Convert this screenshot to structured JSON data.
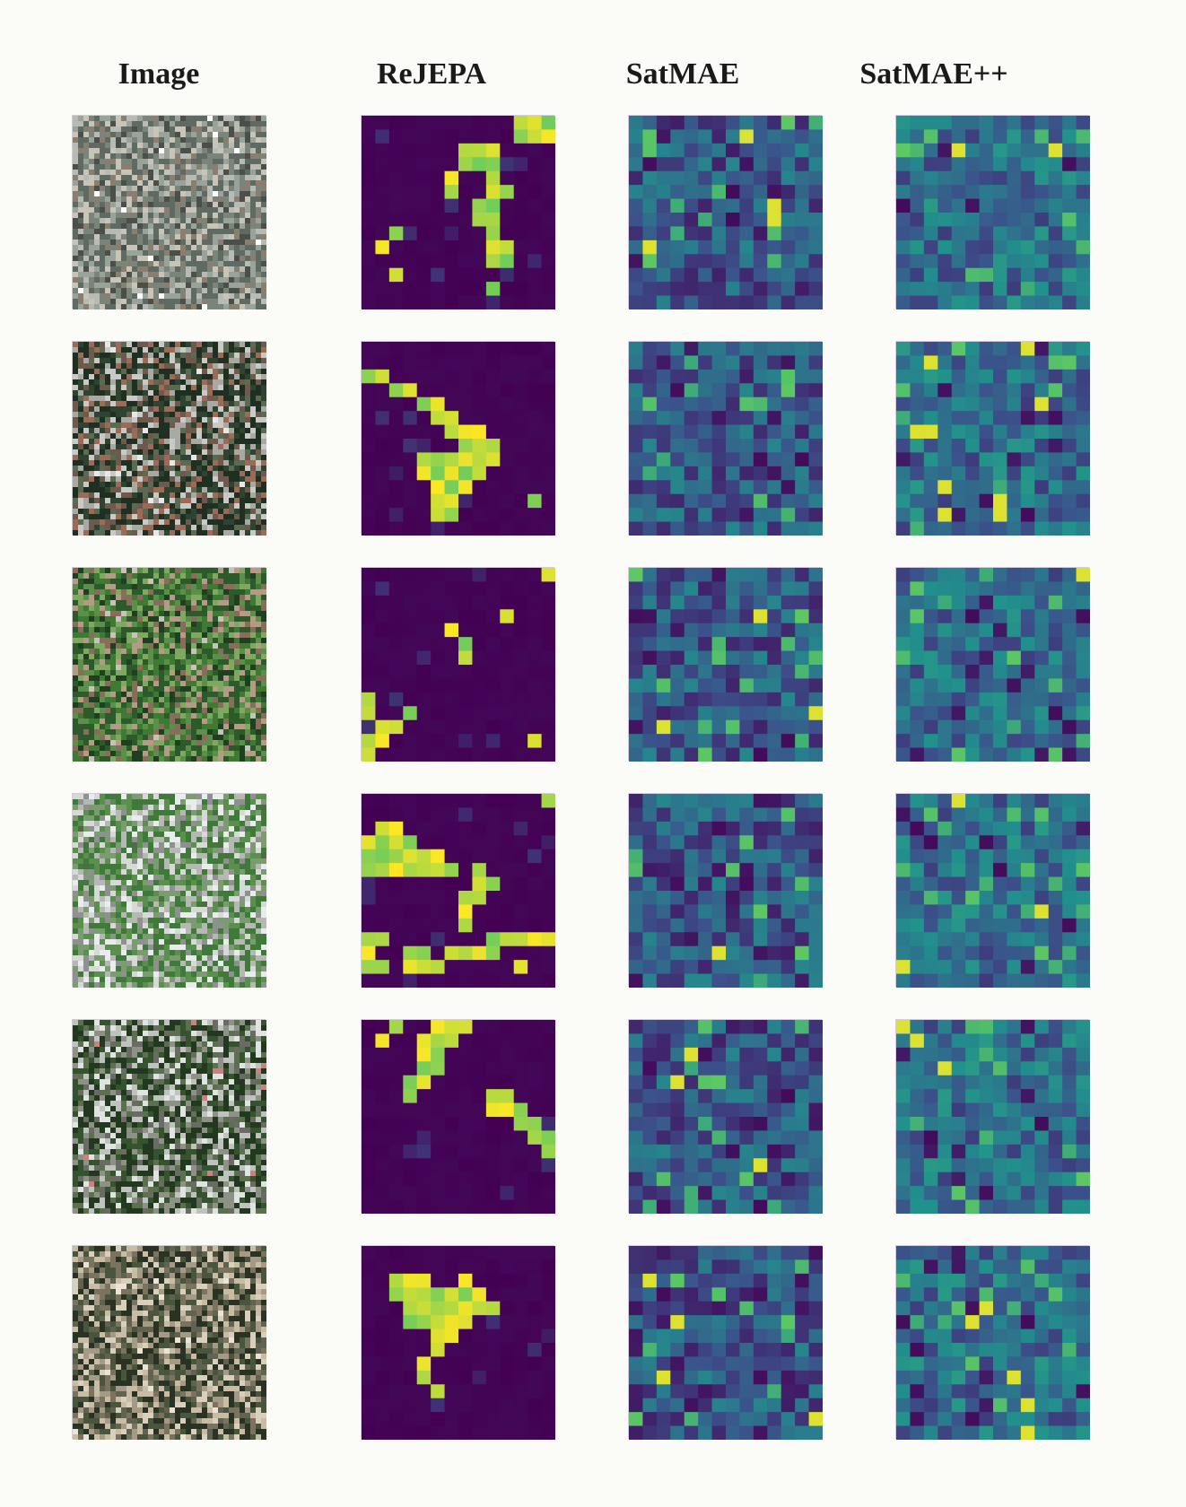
{
  "figure": {
    "columns": [
      "Image",
      "ReJEPA",
      "SatMAE",
      "SatMAE++"
    ],
    "row_count": 6,
    "grid_size": 14,
    "colormap": [
      "#440154",
      "#3b528b",
      "#21918c",
      "#5ec962",
      "#fde725"
    ],
    "photo_palettes": [
      [
        "#5f6a62",
        "#7a8478",
        "#9aa39a",
        "#b8bab4",
        "#4a4f49",
        "#c9c4b8",
        "#8a7e70",
        "#ffffff"
      ],
      [
        "#1f2f22",
        "#2e4430",
        "#6e5a4c",
        "#9b6b58",
        "#a9a9a3",
        "#c9c9c5",
        "#5b6b52",
        "#e8e8e8"
      ],
      [
        "#2d5a2a",
        "#3f7a35",
        "#5c8f4a",
        "#7fa860",
        "#8a6c5a",
        "#b59a86",
        "#1f3f20",
        "#c8c3b9"
      ],
      [
        "#3f7a3a",
        "#5a8f4e",
        "#7b9c70",
        "#b6b9b3",
        "#d7d9d6",
        "#8f9190",
        "#e9ecec",
        "#4e6b47"
      ],
      [
        "#22381f",
        "#35532e",
        "#5c6f4f",
        "#8e9186",
        "#bfc3bd",
        "#6b6b66",
        "#e0e4e0",
        "#c9827d"
      ],
      [
        "#2a3323",
        "#4a553d",
        "#7a735f",
        "#a59a85",
        "#c9bca5",
        "#d9cfbd",
        "#5f6350",
        "#ebe4d6"
      ]
    ]
  }
}
